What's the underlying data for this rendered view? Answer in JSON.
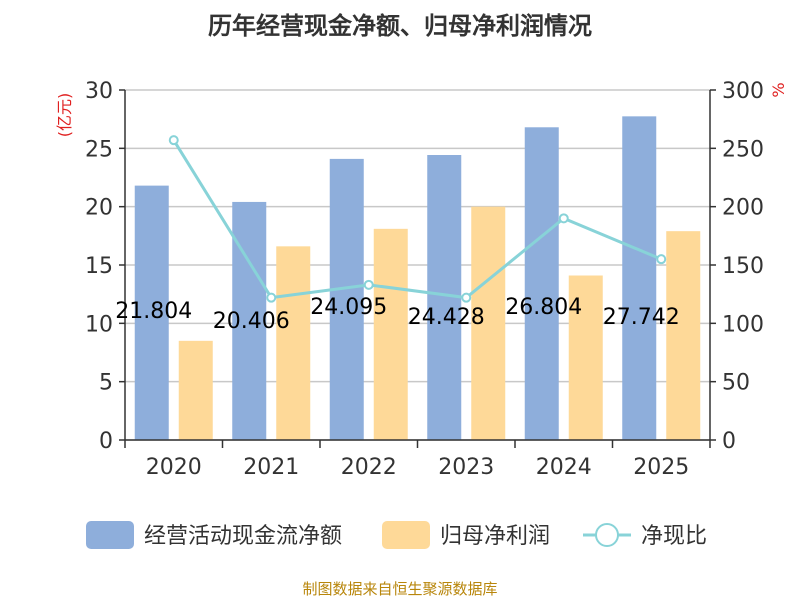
{
  "chart_data": {
    "type": "bar",
    "title": "历年经营现金净额、归母净利润情况",
    "categories": [
      "2020",
      "2021",
      "2022",
      "2023",
      "2024",
      "2025"
    ],
    "series": [
      {
        "name": "经营活动现金流净额",
        "kind": "bar",
        "axis": "left",
        "color": "#8eaedb",
        "values": [
          21.804,
          20.406,
          24.095,
          24.428,
          26.804,
          27.742
        ]
      },
      {
        "name": "归母净利润",
        "kind": "bar",
        "axis": "left",
        "color": "#fed998",
        "values": [
          8.5,
          16.6,
          18.1,
          20.0,
          14.1,
          17.9
        ]
      },
      {
        "name": "净现比",
        "kind": "line",
        "axis": "right",
        "color": "#88d3d8",
        "values": [
          257,
          122,
          133,
          122,
          190,
          155
        ]
      }
    ],
    "data_labels": [
      "21.804",
      "20.406",
      "24.095",
      "24.428",
      "26.804",
      "27.742"
    ],
    "yaxis_left": {
      "label": "(亿元)",
      "ylim": [
        0,
        30
      ],
      "ticks": [
        0,
        5,
        10,
        15,
        20,
        25,
        30
      ]
    },
    "yaxis_right": {
      "label": "%",
      "ylim": [
        0,
        300
      ],
      "ticks": [
        0,
        50,
        100,
        150,
        200,
        250,
        300
      ]
    },
    "legend_position": "bottom",
    "grid": true
  },
  "source": "制图数据来自恒生聚源数据库"
}
